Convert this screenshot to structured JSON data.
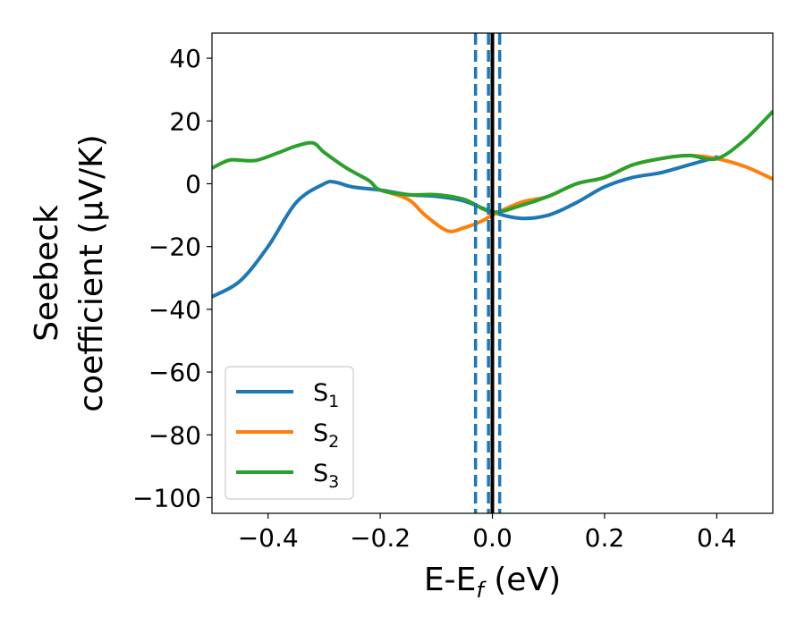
{
  "chart_data": {
    "type": "line",
    "xlabel": "E-E",
    "xlabel_sub": "f",
    "xlabel_unit": "(eV)",
    "ylabel_line1": "Seebeck",
    "ylabel_line2": "coefficient  (μV/K)",
    "xlim": [
      -0.5,
      0.5
    ],
    "ylim": [
      -105,
      48
    ],
    "xticks": [
      -0.4,
      -0.2,
      0.0,
      0.2,
      0.4
    ],
    "xtick_labels": [
      "−0.4",
      "−0.2",
      "0.0",
      "0.2",
      "0.4"
    ],
    "yticks": [
      40,
      20,
      0,
      -20,
      -40,
      -60,
      -80,
      -100
    ],
    "ytick_labels": [
      "40",
      "20",
      "0",
      "−20",
      "−40",
      "−60",
      "−80",
      "−100"
    ],
    "grid": false,
    "legend_position": "lower-left",
    "vlines": [
      {
        "x": 0.0,
        "style": "solid",
        "color": "#000000"
      },
      {
        "x": -0.03,
        "style": "dashed",
        "color": "#1f77b4"
      },
      {
        "x": -0.007,
        "style": "dashed",
        "color": "#1f77b4"
      },
      {
        "x": 0.013,
        "style": "dashed",
        "color": "#1f77b4"
      }
    ],
    "series": [
      {
        "name": "S",
        "sub": "1",
        "color": "#1f77b4",
        "x": [
          -0.5,
          -0.45,
          -0.4,
          -0.35,
          -0.3,
          -0.28,
          -0.25,
          -0.2,
          -0.15,
          -0.1,
          -0.05,
          0.0,
          0.05,
          0.1,
          0.15,
          0.2,
          0.25,
          0.3,
          0.35,
          0.4
        ],
        "y": [
          -36,
          -31,
          -20,
          -6,
          0,
          0.5,
          -1,
          -2,
          -3.5,
          -4,
          -5.5,
          -9,
          -11,
          -10,
          -6,
          -1,
          2,
          3.5,
          6,
          8.5
        ]
      },
      {
        "name": "S",
        "sub": "2",
        "color": "#ff7f0e",
        "x": [
          -0.2,
          -0.15,
          -0.12,
          -0.08,
          -0.05,
          -0.02,
          0.0,
          0.05,
          0.1,
          0.15,
          0.2,
          0.25,
          0.3,
          0.35,
          0.4,
          0.45,
          0.5
        ],
        "y": [
          -2,
          -5,
          -10,
          -15,
          -14,
          -12,
          -10,
          -6,
          -4,
          0,
          2,
          6,
          8,
          9,
          8,
          5.5,
          1.5
        ]
      },
      {
        "name": "S",
        "sub": "3",
        "color": "#2ca02c",
        "x": [
          -0.5,
          -0.47,
          -0.45,
          -0.42,
          -0.38,
          -0.35,
          -0.32,
          -0.3,
          -0.26,
          -0.22,
          -0.2,
          -0.15,
          -0.1,
          -0.05,
          0.0,
          0.05,
          0.1,
          0.15,
          0.2,
          0.25,
          0.3,
          0.35,
          0.4,
          0.45,
          0.5
        ],
        "y": [
          5,
          7.5,
          7.5,
          7.5,
          10,
          12,
          13,
          10,
          5,
          1,
          -2,
          -3.5,
          -3.5,
          -5,
          -9,
          -7,
          -4,
          0,
          2,
          6,
          8,
          9,
          8,
          14,
          23
        ]
      }
    ]
  }
}
